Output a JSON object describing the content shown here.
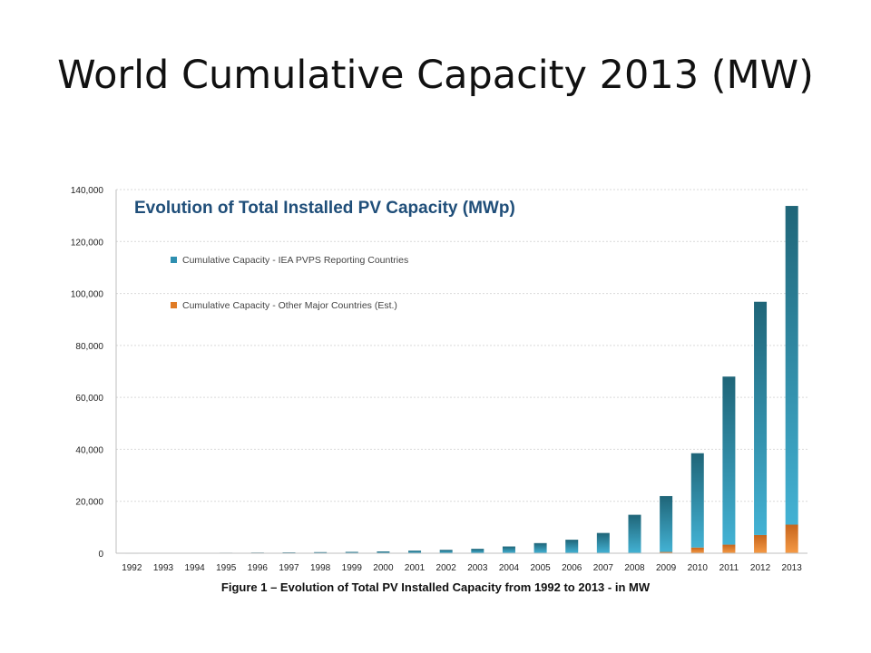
{
  "slide": {
    "title": "World Cumulative Capacity 2013 (MW)",
    "caption": "Figure 1 – Evolution of Total PV Installed Capacity from 1992 to 2013 - in MW"
  },
  "chart_data": {
    "type": "bar",
    "stacked": true,
    "title": "Evolution of Total Installed PV Capacity (MWp)",
    "xlabel": "",
    "ylabel": "",
    "ylim": [
      0,
      140000
    ],
    "yticks": [
      0,
      20000,
      40000,
      60000,
      80000,
      100000,
      120000,
      140000
    ],
    "ytick_labels": [
      "0",
      "20,000",
      "40,000",
      "60,000",
      "80,000",
      "100,000",
      "120,000",
      "140,000"
    ],
    "grid": true,
    "legend_position": "top-left",
    "categories": [
      "1992",
      "1993",
      "1994",
      "1995",
      "1996",
      "1997",
      "1998",
      "1999",
      "2000",
      "2001",
      "2002",
      "2003",
      "2004",
      "2005",
      "2006",
      "2007",
      "2008",
      "2009",
      "2010",
      "2011",
      "2012",
      "2013"
    ],
    "series": [
      {
        "name": "Cumulative Capacity - Other Major Countries (Est.)",
        "color": "#e07b25",
        "values": [
          0,
          0,
          0,
          0,
          0,
          0,
          0,
          0,
          0,
          0,
          0,
          0,
          0,
          0,
          0,
          0,
          0,
          500,
          2200,
          3300,
          7000,
          11000
        ]
      },
      {
        "name": "Cumulative Capacity - IEA PVPS Reporting Countries",
        "color": "#2e8fb0",
        "values": [
          100,
          130,
          160,
          200,
          260,
          330,
          420,
          520,
          700,
          1000,
          1300,
          1700,
          2600,
          3900,
          5200,
          7800,
          14800,
          21500,
          36300,
          64700,
          89800,
          122700
        ]
      }
    ]
  }
}
